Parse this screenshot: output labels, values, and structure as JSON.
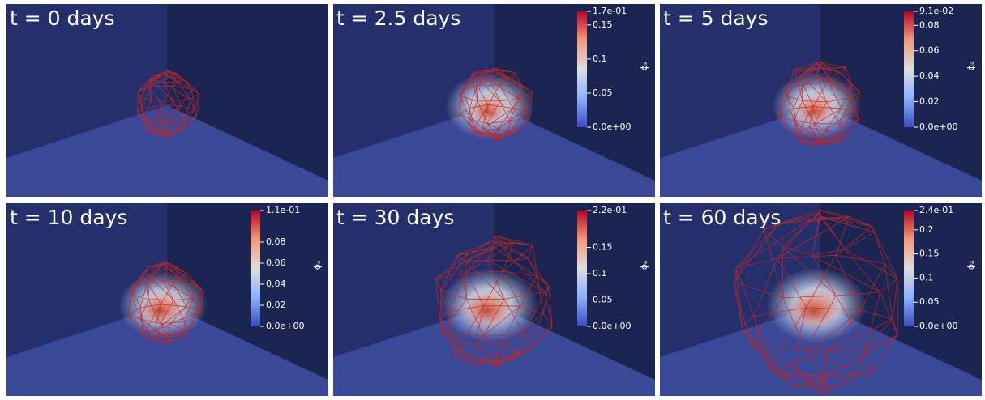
{
  "panels": [
    {
      "title": "t = 0 days"
    },
    {
      "title": "t = 2.5 days",
      "colorbar": {
        "label": "ϕₐ",
        "ticks": [
          {
            "value": 0.17,
            "label": "1.7e-01"
          },
          0.15,
          0.1,
          0.05,
          {
            "value": 0,
            "label": "0.0e+00"
          }
        ]
      }
    },
    {
      "title": "t = 5 days",
      "colorbar": {
        "label": "ϕₐ",
        "ticks": [
          {
            "value": 0.091,
            "label": "9.1e-02"
          },
          0.08,
          0.06,
          0.04,
          0.02,
          {
            "value": 0,
            "label": "0.0e+00"
          }
        ]
      }
    },
    {
      "title": "t = 10 days",
      "colorbar": {
        "label": "ϕₐ",
        "ticks": [
          {
            "value": 0.11,
            "label": "1.1e-01"
          },
          0.08,
          0.06,
          0.04,
          0.02,
          {
            "value": 0,
            "label": "0.0e+00"
          }
        ]
      }
    },
    {
      "title": "t = 30 days",
      "colorbar": {
        "label": "ϕₐ",
        "ticks": [
          {
            "value": 0.22,
            "label": "2.2e-01"
          },
          0.15,
          0.1,
          0.05,
          {
            "value": 0,
            "label": "0.0e+00"
          }
        ]
      }
    },
    {
      "title": "t = 60 days",
      "colorbar": {
        "label": "ϕₐ",
        "ticks": [
          {
            "value": 0.24,
            "label": "2.4e-01"
          },
          0.2,
          0.15,
          0.1,
          0.05,
          {
            "value": 0,
            "label": "0.0e+00"
          }
        ]
      }
    }
  ]
}
